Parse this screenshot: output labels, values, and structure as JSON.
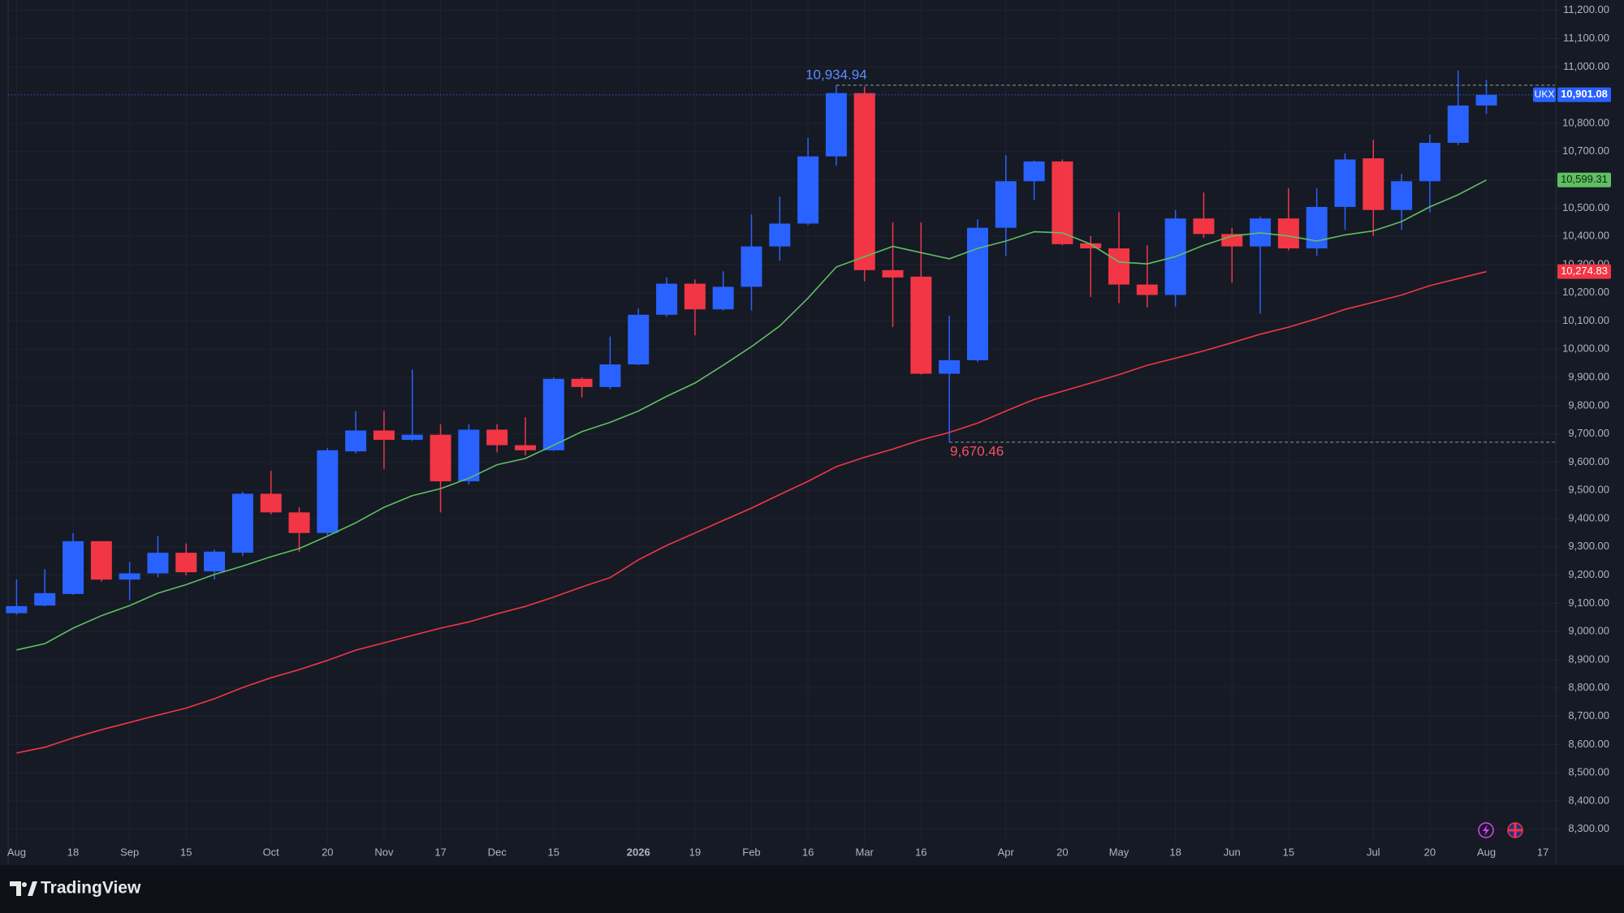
{
  "chart_data": {
    "type": "candlestick",
    "symbol": "UKX",
    "brand": "TradingView",
    "up_color": "#2962ff",
    "down_color": "#f23645",
    "grid": true,
    "categories": [
      "Aug",
      null,
      "18",
      null,
      "Sep",
      null,
      "15",
      null,
      null,
      "Oct",
      null,
      "20",
      null,
      "Nov",
      null,
      "17",
      null,
      "Dec",
      null,
      "15",
      null,
      null,
      "2026",
      null,
      "19",
      null,
      "Feb",
      null,
      "16",
      null,
      "Mar",
      null,
      "16",
      null,
      null,
      "Apr",
      null,
      "20",
      null,
      "May",
      null,
      "18",
      null,
      "Jun",
      null,
      "15",
      null,
      null,
      "Jul",
      null,
      "20",
      null,
      "Aug",
      null,
      "17"
    ],
    "open": [
      9065,
      9092,
      9133,
      9320,
      9184,
      9206,
      9279,
      9213,
      9279,
      9488,
      9422,
      9349,
      9638,
      9712,
      9679,
      9697,
      9532,
      9715,
      9660,
      9642,
      9895,
      9866,
      9946,
      10122,
      10232,
      10141,
      10221,
      10364,
      10445,
      10683,
      10907,
      10280,
      10257,
      9913,
      9961,
      10430,
      10595,
      10665,
      10375,
      10357,
      10229,
      10192,
      10463,
      10408,
      10364,
      10463,
      10357,
      10504,
      10676,
      10493,
      10595,
      10731,
      10863,
      null,
      null
    ],
    "high": [
      9185,
      9221,
      9349,
      9320,
      9246,
      9338,
      9312,
      9290,
      9495,
      9569,
      9440,
      9650,
      9781,
      9781,
      9928,
      9734,
      9734,
      9734,
      9759,
      9900,
      9900,
      10045,
      10144,
      10254,
      10247,
      10276,
      10478,
      10540,
      10749,
      10934.94,
      10930,
      10449,
      10449,
      10119,
      10460,
      10687,
      10668,
      10672,
      10401,
      10485,
      10368,
      10493,
      10555,
      10430,
      10470,
      10570,
      10570,
      10694,
      10742,
      10621,
      10760,
      10987,
      10954,
      null,
      null
    ],
    "low": [
      9060,
      9090,
      9130,
      9177,
      9111,
      9192,
      9199,
      9184,
      9268,
      9415,
      9283,
      9340,
      9631,
      9576,
      9675,
      9422,
      9521,
      9635,
      9624,
      9640,
      9829,
      9858,
      9944,
      10115,
      10049,
      10137,
      10137,
      10313,
      10440,
      10650,
      10240,
      10078,
      9910,
      9670.46,
      9954,
      10331,
      10529,
      10368,
      10185,
      10163,
      10148,
      10152,
      10394,
      10236,
      10126,
      10350,
      10331,
      10423,
      10401,
      10423,
      10485,
      10723,
      10833,
      null,
      null
    ],
    "close": [
      9090,
      9136,
      9320,
      9184,
      9206,
      9279,
      9210,
      9283,
      9488,
      9422,
      9349,
      9642,
      9712,
      9679,
      9697,
      9532,
      9715,
      9660,
      9642,
      9895,
      9866,
      9946,
      10122,
      10232,
      10141,
      10221,
      10364,
      10445,
      10683,
      10907,
      10280,
      10254,
      9913,
      9961,
      10430,
      10595,
      10665,
      10372,
      10357,
      10229,
      10192,
      10463,
      10408,
      10364,
      10463,
      10357,
      10504,
      10672,
      10493,
      10595,
      10731,
      10863,
      10901.08,
      null,
      null
    ],
    "high_labels": [
      null,
      null,
      null,
      null,
      null,
      null,
      null,
      null,
      null,
      null,
      null,
      null,
      null,
      null,
      null,
      null,
      null,
      null,
      null,
      null,
      null,
      null,
      null,
      null,
      null,
      null,
      null,
      null,
      null,
      "10,934.94",
      null,
      null,
      null,
      null,
      null,
      null,
      null,
      null,
      null,
      null,
      null,
      null,
      null,
      null,
      null,
      null,
      null,
      null,
      null,
      null,
      null,
      null,
      null,
      null,
      null
    ],
    "low_labels": [
      null,
      null,
      null,
      null,
      null,
      null,
      null,
      null,
      null,
      null,
      null,
      null,
      null,
      null,
      null,
      null,
      null,
      null,
      null,
      null,
      null,
      null,
      null,
      null,
      null,
      null,
      null,
      null,
      null,
      null,
      null,
      null,
      null,
      "9,670.46",
      null,
      null,
      null,
      null,
      null,
      null,
      null,
      null,
      null,
      null,
      null,
      null,
      null,
      null,
      null,
      null,
      null,
      null,
      null,
      null,
      null
    ],
    "close_labels": [
      null,
      null,
      null,
      null,
      null,
      null,
      null,
      null,
      null,
      null,
      null,
      null,
      null,
      null,
      null,
      null,
      null,
      null,
      null,
      null,
      null,
      null,
      null,
      null,
      null,
      null,
      null,
      null,
      null,
      null,
      null,
      null,
      null,
      null,
      null,
      null,
      null,
      null,
      null,
      null,
      null,
      null,
      null,
      null,
      null,
      null,
      null,
      null,
      null,
      null,
      null,
      null,
      "10,901.08",
      null,
      null
    ],
    "series": [
      {
        "color": "#5fbf62",
        "values": [
          8935,
          8957,
          9012,
          9056,
          9092,
          9136,
          9166,
          9202,
          9232,
          9265,
          9294,
          9338,
          9385,
          9440,
          9481,
          9506,
          9543,
          9591,
          9613,
          9660,
          9708,
          9741,
          9781,
          9833,
          9880,
          9943,
          10009,
          10082,
          10181,
          10291,
          10328,
          10364,
          10342,
          10320,
          10357,
          10383,
          10416,
          10412,
          10372,
          10309,
          10302,
          10328,
          10368,
          10401,
          10412,
          10401,
          10383,
          10405,
          10419,
          10452,
          10504,
          10547,
          10599.31,
          null,
          null
        ],
        "value_labels": [
          null,
          null,
          null,
          null,
          null,
          null,
          null,
          null,
          null,
          null,
          null,
          null,
          null,
          null,
          null,
          null,
          null,
          null,
          null,
          null,
          null,
          null,
          null,
          null,
          null,
          null,
          null,
          null,
          null,
          null,
          null,
          null,
          null,
          null,
          null,
          null,
          null,
          null,
          null,
          null,
          null,
          null,
          null,
          null,
          null,
          null,
          null,
          null,
          null,
          null,
          null,
          null,
          "10,599.31",
          null,
          null
        ]
      },
      {
        "color": "#f23645",
        "values": [
          8570,
          8590,
          8623,
          8652,
          8678,
          8704,
          8729,
          8762,
          8802,
          8836,
          8865,
          8898,
          8934,
          8960,
          8986,
          9012,
          9034,
          9063,
          9089,
          9122,
          9158,
          9191,
          9254,
          9305,
          9349,
          9393,
          9437,
          9485,
          9532,
          9584,
          9617,
          9646,
          9679,
          9705,
          9738,
          9781,
          9822,
          9851,
          9880,
          9910,
          9943,
          9968,
          9994,
          10023,
          10053,
          10078,
          10108,
          10141,
          10166,
          10192,
          10225,
          10250,
          10274.83,
          null,
          null
        ],
        "value_labels": [
          null,
          null,
          null,
          null,
          null,
          null,
          null,
          null,
          null,
          null,
          null,
          null,
          null,
          null,
          null,
          null,
          null,
          null,
          null,
          null,
          null,
          null,
          null,
          null,
          null,
          null,
          null,
          null,
          null,
          null,
          null,
          null,
          null,
          null,
          null,
          null,
          null,
          null,
          null,
          null,
          null,
          null,
          null,
          null,
          null,
          null,
          null,
          null,
          null,
          null,
          null,
          null,
          "10,274.83",
          null,
          null
        ]
      }
    ],
    "ylim": [
      8300,
      11200
    ],
    "yticks": [
      {
        "value": 8300,
        "label": "8,300.00"
      },
      {
        "value": 8400,
        "label": "8,400.00"
      },
      {
        "value": 8500,
        "label": "8,500.00"
      },
      {
        "value": 8600,
        "label": "8,600.00"
      },
      {
        "value": 8700,
        "label": "8,700.00"
      },
      {
        "value": 8800,
        "label": "8,800.00"
      },
      {
        "value": 8900,
        "label": "8,900.00"
      },
      {
        "value": 9000,
        "label": "9,000.00"
      },
      {
        "value": 9100,
        "label": "9,100.00"
      },
      {
        "value": 9200,
        "label": "9,200.00"
      },
      {
        "value": 9300,
        "label": "9,300.00"
      },
      {
        "value": 9400,
        "label": "9,400.00"
      },
      {
        "value": 9500,
        "label": "9,500.00"
      },
      {
        "value": 9600,
        "label": "9,600.00"
      },
      {
        "value": 9700,
        "label": "9,700.00"
      },
      {
        "value": 9800,
        "label": "9,800.00"
      },
      {
        "value": 9900,
        "label": "9,900.00"
      },
      {
        "value": 10000,
        "label": "10,000.00"
      },
      {
        "value": 10100,
        "label": "10,100.00"
      },
      {
        "value": 10200,
        "label": "10,200.00"
      },
      {
        "value": 10300,
        "label": "10,300.00"
      },
      {
        "value": 10400,
        "label": "10,400.00"
      },
      {
        "value": 10500,
        "label": "10,500.00"
      },
      {
        "value": 10600,
        "label": "10,600.00"
      },
      {
        "value": 10700,
        "label": "10,700.00"
      },
      {
        "value": 10800,
        "label": "10,800.00"
      },
      {
        "value": 10900,
        "label": "10,900.00"
      },
      {
        "value": 11000,
        "label": "11,000.00"
      },
      {
        "value": 11100,
        "label": "11,100.00"
      },
      {
        "value": 11200,
        "label": "11,200.00"
      }
    ]
  }
}
